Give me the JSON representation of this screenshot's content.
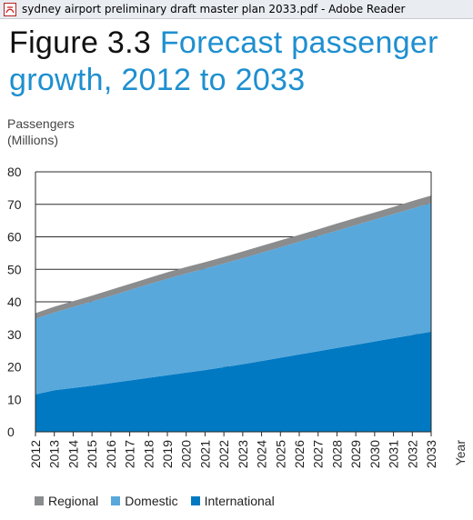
{
  "window": {
    "title": "sydney airport preliminary draft master plan 2033.pdf - Adobe Reader",
    "icon": "pdf-file-icon"
  },
  "figure": {
    "label": "Figure 3.3",
    "title": "Forecast passenger growth, 2012 to 2033"
  },
  "chart_data": {
    "type": "area",
    "stacked": true,
    "ylabel_lines": [
      "Passengers",
      "(Millions)"
    ],
    "xlabel": "Year",
    "ylim": [
      0,
      80
    ],
    "yticks": [
      0,
      10,
      20,
      30,
      40,
      50,
      60,
      70,
      80
    ],
    "grid": true,
    "legend_position": "bottom-left",
    "x": [
      "2012",
      "2013",
      "2014",
      "2015",
      "2016",
      "2017",
      "2018",
      "2019",
      "2020",
      "2021",
      "2022",
      "2023",
      "2024",
      "2025",
      "2026",
      "2027",
      "2028",
      "2029",
      "2030",
      "2031",
      "2032",
      "2033"
    ],
    "series": [
      {
        "name": "International",
        "color": "#0079c2",
        "values": [
          11.5,
          12.8,
          13.5,
          14.2,
          15.0,
          15.8,
          16.6,
          17.4,
          18.2,
          19.0,
          19.9,
          20.8,
          21.8,
          22.8,
          23.8,
          24.8,
          25.8,
          26.8,
          27.8,
          28.8,
          29.8,
          30.8
        ]
      },
      {
        "name": "Domestic",
        "color": "#58a8dc",
        "values": [
          23.3,
          23.9,
          24.9,
          25.9,
          26.8,
          27.8,
          28.8,
          29.7,
          30.5,
          31.2,
          31.9,
          32.6,
          33.3,
          34.0,
          34.7,
          35.4,
          36.1,
          36.8,
          37.5,
          38.2,
          38.9,
          39.6
        ]
      },
      {
        "name": "Regional",
        "color": "#8a8c8e",
        "values": [
          1.7,
          1.8,
          1.8,
          1.8,
          1.9,
          1.9,
          1.9,
          2.0,
          2.0,
          2.0,
          2.0,
          2.1,
          2.1,
          2.1,
          2.1,
          2.1,
          2.2,
          2.2,
          2.2,
          2.2,
          2.3,
          2.3
        ]
      }
    ],
    "legend": [
      "Regional",
      "Domestic",
      "International"
    ]
  }
}
